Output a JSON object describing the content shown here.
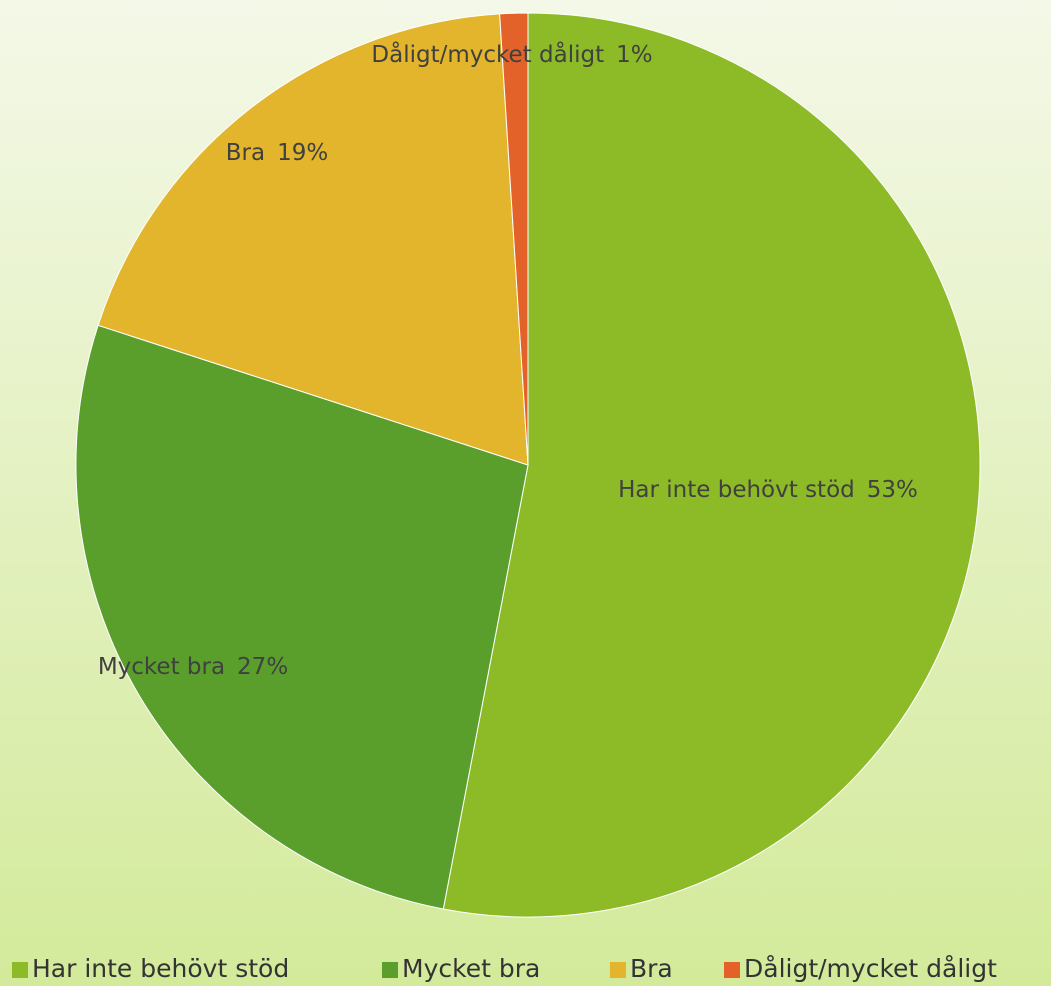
{
  "chart_data": {
    "type": "pie",
    "categories": [
      "Har inte behövt stöd",
      "Mycket bra",
      "Bra",
      "Dåligt/mycket dåligt"
    ],
    "values": [
      53,
      27,
      19,
      1
    ],
    "value_labels": [
      "53%",
      "27%",
      "19%",
      "1%"
    ],
    "colors": [
      "#8dbb27",
      "#5a9e2c",
      "#e2b52c",
      "#e2622a"
    ],
    "legend": "bottom"
  }
}
